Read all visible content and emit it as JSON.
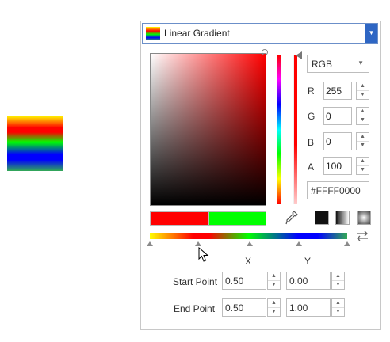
{
  "brush": {
    "type_label": "Linear Gradient"
  },
  "color_mode": {
    "selected": "RGB"
  },
  "channels": [
    {
      "label": "R",
      "value": "255"
    },
    {
      "label": "G",
      "value": "0"
    },
    {
      "label": "B",
      "value": "0"
    },
    {
      "label": "A",
      "value": "100"
    }
  ],
  "hex": "#FFFF0000",
  "current_color": "#ff0000",
  "previous_color": "#00ff00",
  "gradient": {
    "x_label": "X",
    "y_label": "Y",
    "start_label": "Start Point",
    "end_label": "End Point",
    "start": {
      "x": "0.50",
      "y": "0.00"
    },
    "end": {
      "x": "0.50",
      "y": "1.00"
    }
  }
}
